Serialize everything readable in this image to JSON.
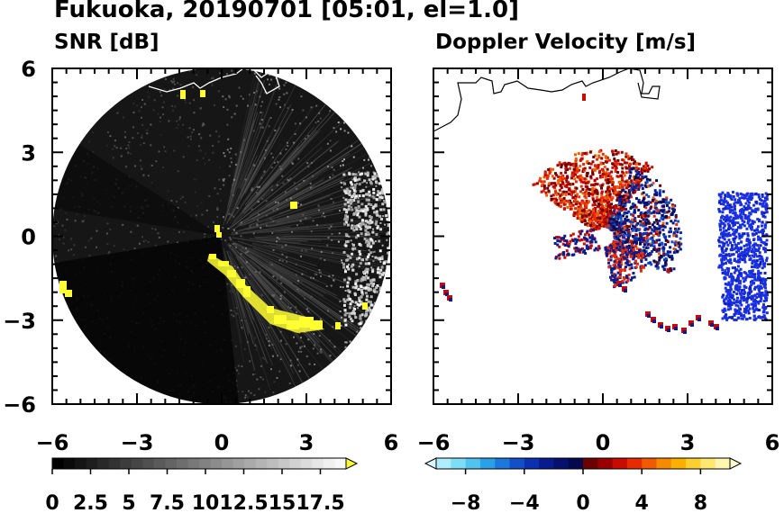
{
  "title": "Fukuoka, 20190701 [05:01, el=1.0]",
  "panels": [
    {
      "title": "SNR [dB]"
    },
    {
      "title": "Doppler Velocity [m/s]"
    }
  ],
  "colorbars": [
    {
      "ticks": [
        "0",
        "2.5",
        "5",
        "7.5",
        "10",
        "12.5",
        "15",
        "17.5"
      ],
      "range": [
        0,
        20
      ],
      "colors": [
        "#000000",
        "#0a0a0a",
        "#141414",
        "#1e1e1e",
        "#282828",
        "#323232",
        "#3c3c3c",
        "#464646",
        "#505050",
        "#5a5a5a",
        "#646464",
        "#6e6e6e",
        "#787878",
        "#828282",
        "#8c8c8c",
        "#969696",
        "#a0a0a0",
        "#aaaaaa",
        "#b4b4b4",
        "#bebebe",
        "#c8c8c8",
        "#d2d2d2",
        "#dcdcdc",
        "#e6e6e6",
        "#f0f0f0",
        "#f8f8f8"
      ],
      "extend_color": "#ffff33"
    },
    {
      "ticks": [
        "−8",
        "−4",
        "0",
        "4",
        "8"
      ],
      "range": [
        -10,
        10
      ],
      "colors": [
        "#aeeeff",
        "#7fdcf5",
        "#50c4ee",
        "#2aa0e6",
        "#1b78dc",
        "#1350c8",
        "#0c30b0",
        "#081c90",
        "#061070",
        "#04084f",
        "#6a0000",
        "#9a0000",
        "#c80a00",
        "#e82a00",
        "#f25a00",
        "#f88a00",
        "#fbb000",
        "#fdd030",
        "#fee870",
        "#fff7b0"
      ],
      "extend_low": "#d8f8ff",
      "extend_high": "#fffbd0"
    }
  ],
  "chart_data": [
    {
      "type": "heatmap",
      "title": "SNR [dB]",
      "xlim": [
        -6,
        6
      ],
      "ylim": [
        -6,
        6
      ],
      "xticks": [
        "−6",
        "−3",
        "0",
        "3",
        "6"
      ],
      "yticks": [
        "6",
        "3",
        "0",
        "−3",
        "−6"
      ],
      "radar_range": 6,
      "colorbar_range": [
        0,
        20
      ],
      "saturated_echoes_at_above_17_5": true
    },
    {
      "type": "heatmap",
      "title": "Doppler Velocity [m/s]",
      "xlim": [
        -6,
        6
      ],
      "ylim": [
        -6,
        6
      ],
      "xticks": [
        "−6",
        "−3",
        "0",
        "3",
        "6"
      ],
      "colorbar_range": [
        -10,
        10
      ]
    }
  ]
}
